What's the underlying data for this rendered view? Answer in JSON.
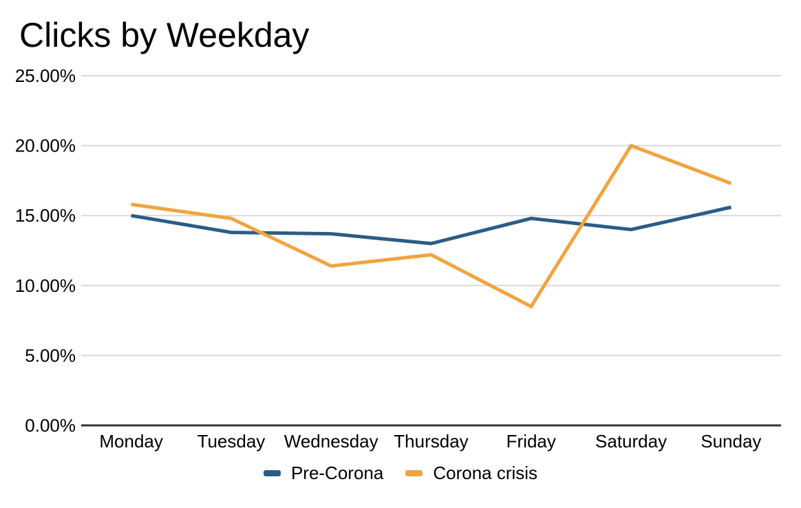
{
  "title": "Clicks by Weekday",
  "chart_data": {
    "type": "line",
    "title": "Clicks by Weekday",
    "categories": [
      "Monday",
      "Tuesday",
      "Wednesday",
      "Thursday",
      "Friday",
      "Saturday",
      "Sunday"
    ],
    "series": [
      {
        "name": "Pre-Corona",
        "color": "#2a5d87",
        "values": [
          15.0,
          13.8,
          13.7,
          13.0,
          14.8,
          14.0,
          15.6
        ]
      },
      {
        "name": "Corona crisis",
        "color": "#f0a43f",
        "values": [
          15.8,
          14.8,
          11.4,
          12.2,
          8.5,
          20.0,
          17.3
        ]
      }
    ],
    "xlabel": "",
    "ylabel": "",
    "ylim": [
      0,
      25
    ],
    "yticks": [
      "0.00%",
      "5.00%",
      "10.00%",
      "15.00%",
      "20.00%",
      "25.00%"
    ],
    "value_unit": "%",
    "grid": true,
    "legend_position": "bottom"
  },
  "colors": {
    "background": "#ffffff",
    "grid": "#d9d9d9",
    "axis": "#333333",
    "text": "#000000"
  }
}
